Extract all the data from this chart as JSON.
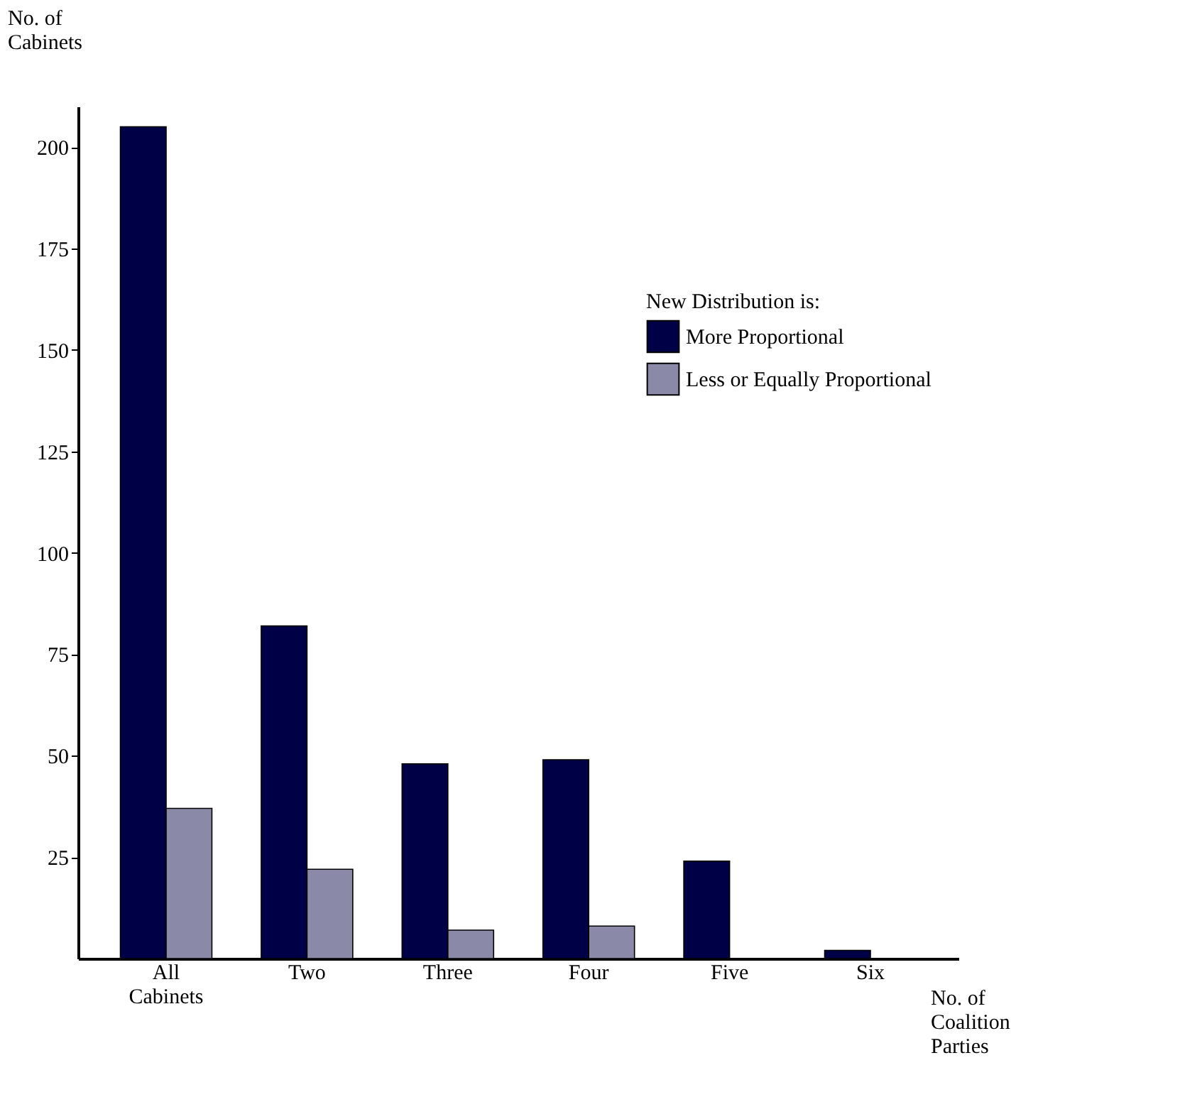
{
  "chart_data": {
    "type": "bar",
    "ylabel": "No. of Cabinets",
    "xlabel": "No. of Coalition Parties",
    "legend_title": "New Distribution is:",
    "categories": [
      "All Cabinets",
      "Two",
      "Three",
      "Four",
      "Five",
      "Six"
    ],
    "series": [
      {
        "name": "More Proportional",
        "color": "#000046",
        "values": [
          205,
          82,
          48,
          49,
          24,
          2
        ]
      },
      {
        "name": "Less or Equally Proportional",
        "color": "#8a8aa8",
        "values": [
          37,
          22,
          7,
          8,
          null,
          null
        ]
      }
    ],
    "ylim": [
      0,
      210
    ],
    "yticks": [
      25,
      50,
      75,
      100,
      125,
      150,
      175,
      200
    ],
    "grid": false,
    "legend": "top right"
  }
}
